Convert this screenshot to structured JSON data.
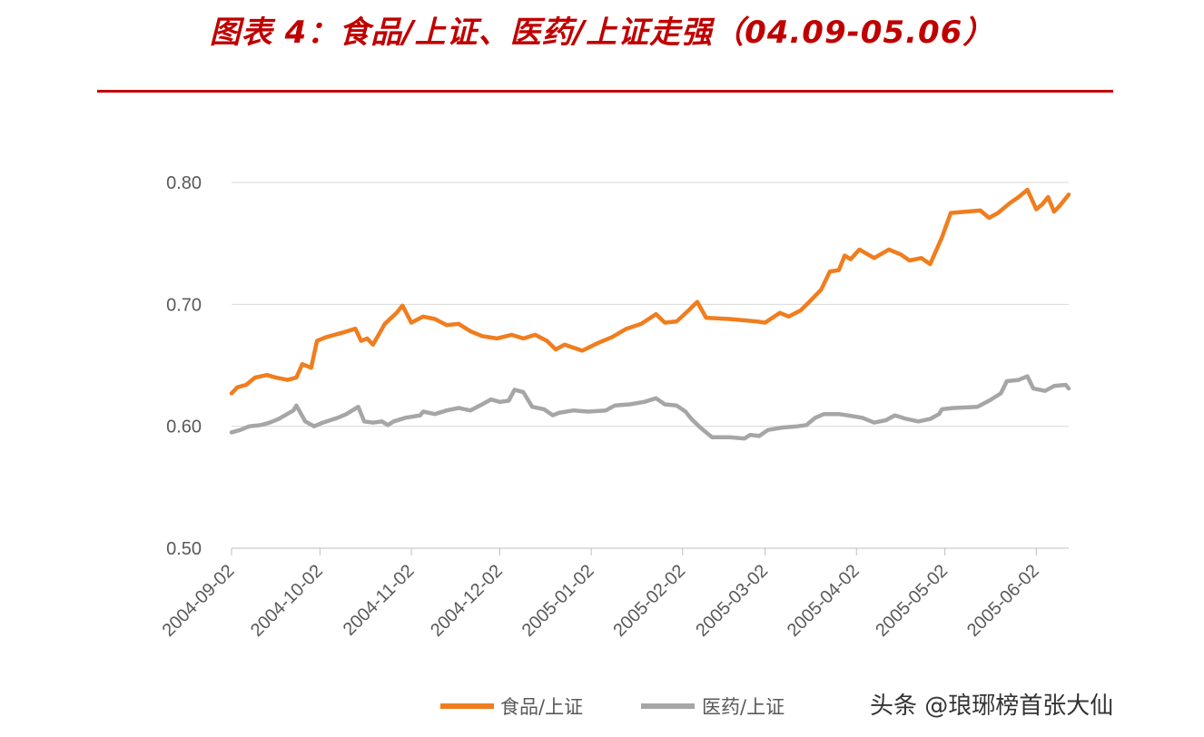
{
  "page": {
    "title": "图表 4：食品/上证、医药/上证走强（04.09-05.06）",
    "watermark": "头条 @琅琊榜首张大仙"
  },
  "colors": {
    "title": "#c00000",
    "food": "#f07d1e",
    "pharma": "#a6a6a6",
    "grid": "#d9d9d9"
  },
  "chart_data": {
    "type": "line",
    "title": "",
    "xlabel": "",
    "ylabel": "",
    "ylim": [
      0.5,
      0.8
    ],
    "yticks": [
      "0.50",
      "0.60",
      "0.70",
      "0.80"
    ],
    "xticks": [
      "2004-09-02",
      "2004-10-02",
      "2004-11-02",
      "2004-12-02",
      "2005-01-02",
      "2005-02-02",
      "2005-03-02",
      "2005-04-02",
      "2005-05-02",
      "2005-06-02"
    ],
    "grid": true,
    "legend": "bottom",
    "series": [
      {
        "name": "食品/上证",
        "color": "#f07d1e",
        "points": [
          [
            "2004-09-02",
            0.627
          ],
          [
            "2004-09-04",
            0.632
          ],
          [
            "2004-09-07",
            0.634
          ],
          [
            "2004-09-10",
            0.64
          ],
          [
            "2004-09-14",
            0.642
          ],
          [
            "2004-09-17",
            0.64
          ],
          [
            "2004-09-21",
            0.638
          ],
          [
            "2004-09-24",
            0.64
          ],
          [
            "2004-09-26",
            0.651
          ],
          [
            "2004-09-29",
            0.648
          ],
          [
            "2004-10-01",
            0.67
          ],
          [
            "2004-10-04",
            0.673
          ],
          [
            "2004-10-10",
            0.677
          ],
          [
            "2004-10-14",
            0.68
          ],
          [
            "2004-10-16",
            0.67
          ],
          [
            "2004-10-18",
            0.672
          ],
          [
            "2004-10-20",
            0.667
          ],
          [
            "2004-10-24",
            0.684
          ],
          [
            "2004-10-28",
            0.693
          ],
          [
            "2004-10-30",
            0.699
          ],
          [
            "2004-11-02",
            0.685
          ],
          [
            "2004-11-06",
            0.69
          ],
          [
            "2004-11-10",
            0.688
          ],
          [
            "2004-11-14",
            0.683
          ],
          [
            "2004-11-18",
            0.684
          ],
          [
            "2004-11-22",
            0.678
          ],
          [
            "2004-11-26",
            0.674
          ],
          [
            "2004-12-01",
            0.672
          ],
          [
            "2004-12-06",
            0.675
          ],
          [
            "2004-12-10",
            0.672
          ],
          [
            "2004-12-14",
            0.675
          ],
          [
            "2004-12-18",
            0.67
          ],
          [
            "2004-12-21",
            0.663
          ],
          [
            "2004-12-24",
            0.667
          ],
          [
            "2004-12-30",
            0.662
          ],
          [
            "2005-01-04",
            0.668
          ],
          [
            "2005-01-09",
            0.673
          ],
          [
            "2005-01-14",
            0.68
          ],
          [
            "2005-01-19",
            0.684
          ],
          [
            "2005-01-24",
            0.692
          ],
          [
            "2005-01-27",
            0.685
          ],
          [
            "2005-01-31",
            0.686
          ],
          [
            "2005-02-04",
            0.695
          ],
          [
            "2005-02-07",
            0.702
          ],
          [
            "2005-02-10",
            0.689
          ],
          [
            "2005-02-18",
            0.688
          ],
          [
            "2005-02-27",
            0.686
          ],
          [
            "2005-03-02",
            0.685
          ],
          [
            "2005-03-07",
            0.693
          ],
          [
            "2005-03-10",
            0.69
          ],
          [
            "2005-03-14",
            0.695
          ],
          [
            "2005-03-17",
            0.702
          ],
          [
            "2005-03-21",
            0.712
          ],
          [
            "2005-03-24",
            0.727
          ],
          [
            "2005-03-27",
            0.728
          ],
          [
            "2005-03-29",
            0.74
          ],
          [
            "2005-03-31",
            0.737
          ],
          [
            "2005-04-03",
            0.745
          ],
          [
            "2005-04-08",
            0.738
          ],
          [
            "2005-04-13",
            0.745
          ],
          [
            "2005-04-17",
            0.741
          ],
          [
            "2005-04-20",
            0.736
          ],
          [
            "2005-04-24",
            0.738
          ],
          [
            "2005-04-27",
            0.733
          ],
          [
            "2005-05-01",
            0.755
          ],
          [
            "2005-05-04",
            0.775
          ],
          [
            "2005-05-14",
            0.777
          ],
          [
            "2005-05-17",
            0.771
          ],
          [
            "2005-05-20",
            0.775
          ],
          [
            "2005-05-24",
            0.783
          ],
          [
            "2005-05-27",
            0.788
          ],
          [
            "2005-05-30",
            0.794
          ],
          [
            "2005-06-02",
            0.778
          ],
          [
            "2005-06-04",
            0.782
          ],
          [
            "2005-06-06",
            0.788
          ],
          [
            "2005-06-08",
            0.776
          ],
          [
            "2005-06-10",
            0.781
          ],
          [
            "2005-06-13",
            0.79
          ]
        ]
      },
      {
        "name": "医药/上证",
        "color": "#a6a6a6",
        "points": [
          [
            "2004-09-02",
            0.595
          ],
          [
            "2004-09-05",
            0.597
          ],
          [
            "2004-09-08",
            0.6
          ],
          [
            "2004-09-12",
            0.601
          ],
          [
            "2004-09-15",
            0.603
          ],
          [
            "2004-09-18",
            0.606
          ],
          [
            "2004-09-23",
            0.613
          ],
          [
            "2004-09-24",
            0.617
          ],
          [
            "2004-09-27",
            0.604
          ],
          [
            "2004-09-30",
            0.6
          ],
          [
            "2004-10-03",
            0.603
          ],
          [
            "2004-10-08",
            0.607
          ],
          [
            "2004-10-11",
            0.61
          ],
          [
            "2004-10-15",
            0.616
          ],
          [
            "2004-10-17",
            0.604
          ],
          [
            "2004-10-20",
            0.603
          ],
          [
            "2004-10-23",
            0.604
          ],
          [
            "2004-10-25",
            0.601
          ],
          [
            "2004-10-27",
            0.604
          ],
          [
            "2004-10-31",
            0.607
          ],
          [
            "2004-11-05",
            0.609
          ],
          [
            "2004-11-06",
            0.612
          ],
          [
            "2004-11-10",
            0.61
          ],
          [
            "2004-11-14",
            0.613
          ],
          [
            "2004-11-18",
            0.615
          ],
          [
            "2004-11-22",
            0.613
          ],
          [
            "2004-11-26",
            0.618
          ],
          [
            "2004-11-29",
            0.622
          ],
          [
            "2004-12-02",
            0.62
          ],
          [
            "2004-12-05",
            0.621
          ],
          [
            "2004-12-07",
            0.63
          ],
          [
            "2004-12-10",
            0.628
          ],
          [
            "2004-12-13",
            0.616
          ],
          [
            "2004-12-17",
            0.614
          ],
          [
            "2004-12-20",
            0.609
          ],
          [
            "2004-12-22",
            0.611
          ],
          [
            "2004-12-27",
            0.613
          ],
          [
            "2005-01-01",
            0.612
          ],
          [
            "2005-01-07",
            0.613
          ],
          [
            "2005-01-10",
            0.617
          ],
          [
            "2005-01-15",
            0.618
          ],
          [
            "2005-01-20",
            0.62
          ],
          [
            "2005-01-24",
            0.623
          ],
          [
            "2005-01-27",
            0.618
          ],
          [
            "2005-01-31",
            0.617
          ],
          [
            "2005-02-03",
            0.612
          ],
          [
            "2005-02-05",
            0.606
          ],
          [
            "2005-02-08",
            0.599
          ],
          [
            "2005-02-12",
            0.591
          ],
          [
            "2005-02-18",
            0.591
          ],
          [
            "2005-02-23",
            0.59
          ],
          [
            "2005-02-25",
            0.593
          ],
          [
            "2005-02-28",
            0.592
          ],
          [
            "2005-03-03",
            0.597
          ],
          [
            "2005-03-08",
            0.599
          ],
          [
            "2005-03-13",
            0.6
          ],
          [
            "2005-03-16",
            0.601
          ],
          [
            "2005-03-19",
            0.607
          ],
          [
            "2005-03-22",
            0.61
          ],
          [
            "2005-03-27",
            0.61
          ],
          [
            "2005-03-30",
            0.609
          ],
          [
            "2005-04-04",
            0.607
          ],
          [
            "2005-04-08",
            0.603
          ],
          [
            "2005-04-12",
            0.605
          ],
          [
            "2005-04-15",
            0.609
          ],
          [
            "2005-04-19",
            0.606
          ],
          [
            "2005-04-23",
            0.604
          ],
          [
            "2005-04-27",
            0.606
          ],
          [
            "2005-04-30",
            0.61
          ],
          [
            "2005-05-01",
            0.614
          ],
          [
            "2005-05-05",
            0.615
          ],
          [
            "2005-05-13",
            0.616
          ],
          [
            "2005-05-17",
            0.621
          ],
          [
            "2005-05-21",
            0.627
          ],
          [
            "2005-05-23",
            0.637
          ],
          [
            "2005-05-27",
            0.638
          ],
          [
            "2005-05-30",
            0.641
          ],
          [
            "2005-06-01",
            0.631
          ],
          [
            "2005-06-05",
            0.629
          ],
          [
            "2005-06-08",
            0.633
          ],
          [
            "2005-06-12",
            0.634
          ],
          [
            "2005-06-13",
            0.631
          ]
        ]
      }
    ]
  }
}
